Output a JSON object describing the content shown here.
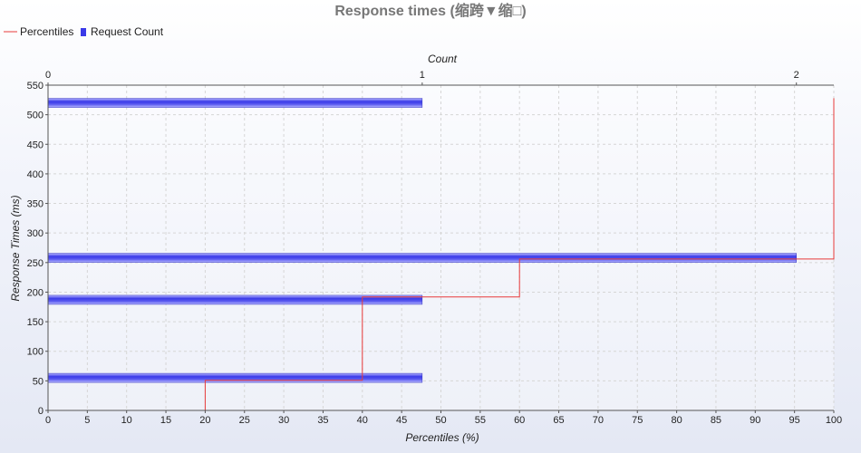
{
  "chart_data": {
    "type": "line",
    "title": "Response times (缩跨▼缩□)",
    "legend": [
      {
        "label": "Percentiles",
        "color": "#e83a3a"
      },
      {
        "label": "Request Count",
        "color": "#3a3ae8"
      }
    ],
    "legend_position": "top-left",
    "grid": true,
    "x_bottom": {
      "label": "Percentiles (%)",
      "range": [
        0,
        100
      ],
      "ticks": [
        0,
        5,
        10,
        15,
        20,
        25,
        30,
        35,
        40,
        45,
        50,
        55,
        60,
        65,
        70,
        75,
        80,
        85,
        90,
        95,
        100
      ]
    },
    "x_top": {
      "label": "Count",
      "range": [
        0,
        2.1
      ],
      "ticks": [
        0,
        1,
        2
      ]
    },
    "y": {
      "label": "Response Times (ms)",
      "range": [
        0,
        550
      ],
      "ticks": [
        0,
        50,
        100,
        150,
        200,
        250,
        300,
        350,
        400,
        450,
        500,
        550
      ]
    },
    "series": [
      {
        "name": "Percentiles",
        "type": "step-line",
        "color": "#e83a3a",
        "points": [
          [
            20,
            0
          ],
          [
            20,
            51
          ],
          [
            40,
            51
          ],
          [
            40,
            192
          ],
          [
            60,
            192
          ],
          [
            60,
            256
          ],
          [
            100,
            256
          ],
          [
            100,
            528
          ]
        ]
      },
      {
        "name": "Request Count",
        "type": "horizontal-bar",
        "color": "#3a3ae8",
        "axis": "x_top",
        "bars": [
          {
            "response_time": 55,
            "count": 1
          },
          {
            "response_time": 187,
            "count": 1
          },
          {
            "response_time": 258,
            "count": 2
          },
          {
            "response_time": 520,
            "count": 1
          }
        ]
      }
    ]
  }
}
